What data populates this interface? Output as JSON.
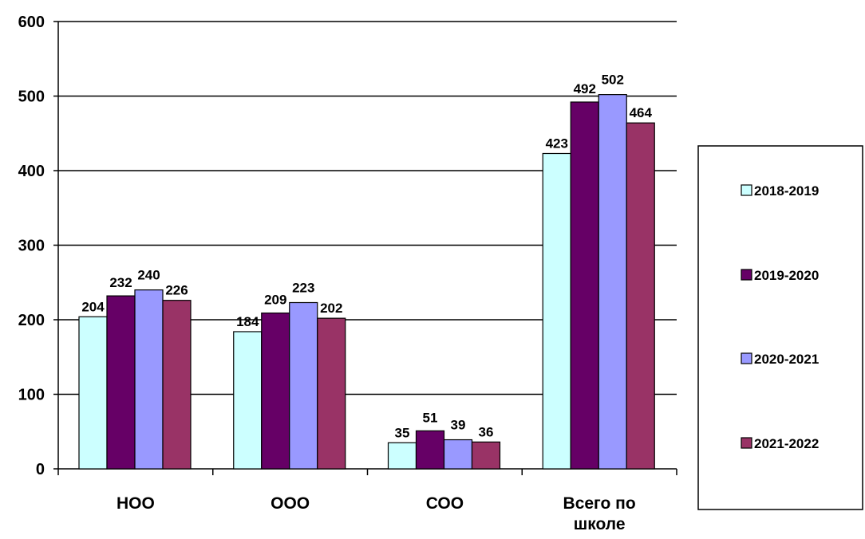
{
  "chart_data": {
    "type": "bar",
    "categories": [
      "НОО",
      "ООО",
      "СОО",
      "Всего по школе"
    ],
    "series": [
      {
        "name": "2018-2019",
        "values": [
          204,
          184,
          35,
          423
        ],
        "color": "#CCFFFF"
      },
      {
        "name": "2019-2020",
        "values": [
          232,
          209,
          51,
          492
        ],
        "color": "#660066"
      },
      {
        "name": "2020-2021",
        "values": [
          240,
          223,
          39,
          502
        ],
        "color": "#9999FF"
      },
      {
        "name": "2021-2022",
        "values": [
          226,
          202,
          36,
          464
        ],
        "color": "#993366"
      }
    ],
    "yticks": [
      "0",
      "100",
      "200",
      "300",
      "400",
      "500",
      "600"
    ],
    "ylim": [
      0,
      600
    ],
    "grid": true,
    "legend_position": "right",
    "title": "",
    "xlabel": "",
    "ylabel": ""
  }
}
